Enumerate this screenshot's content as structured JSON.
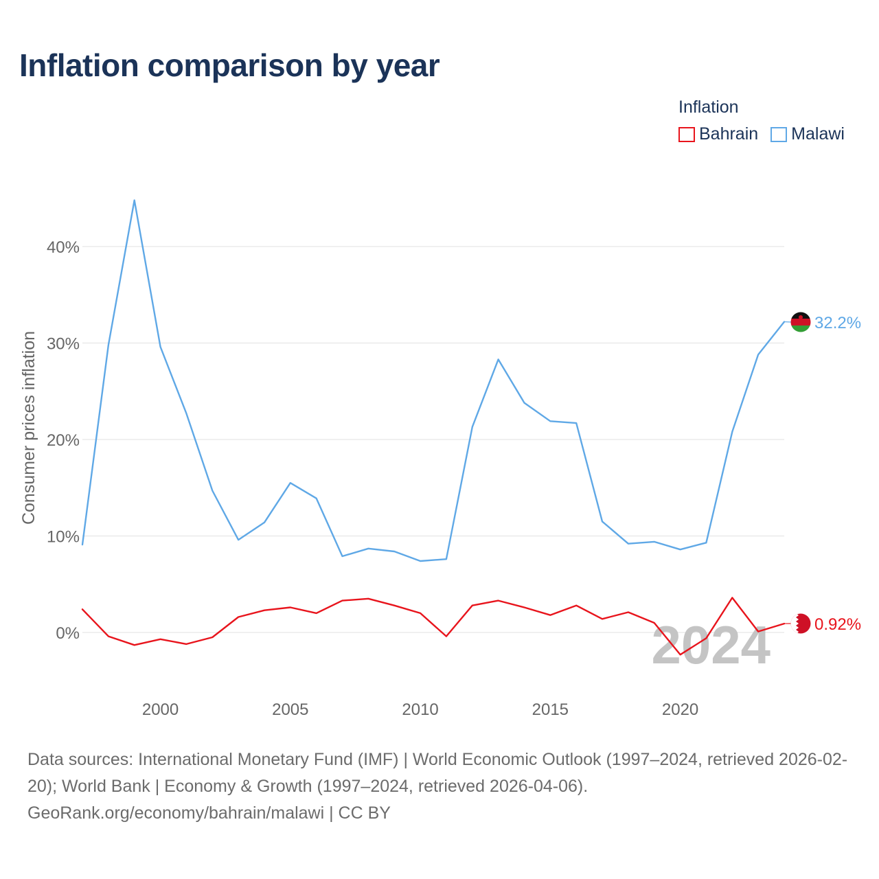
{
  "title": "Inflation comparison by year",
  "legend": {
    "title": "Inflation",
    "items": [
      {
        "label": "Bahrain",
        "color": "#e8141c"
      },
      {
        "label": "Malawi",
        "color": "#5fa8e6"
      }
    ]
  },
  "watermark_year": "2024",
  "chart_data": {
    "type": "line",
    "title": "Inflation comparison by year",
    "xlabel": "",
    "ylabel": "Consumer prices inflation",
    "xlim": [
      1997,
      2024
    ],
    "ylim": [
      -5,
      48
    ],
    "x_ticks": [
      2000,
      2005,
      2010,
      2015,
      2020
    ],
    "y_ticks": [
      0,
      10,
      20,
      30,
      40
    ],
    "y_tick_labels": [
      "0%",
      "10%",
      "20%",
      "30%",
      "40%"
    ],
    "x": [
      1997,
      1998,
      1999,
      2000,
      2001,
      2002,
      2003,
      2004,
      2005,
      2006,
      2007,
      2008,
      2009,
      2010,
      2011,
      2012,
      2013,
      2014,
      2015,
      2016,
      2017,
      2018,
      2019,
      2020,
      2021,
      2022,
      2023,
      2024
    ],
    "series": [
      {
        "name": "Malawi",
        "color": "#5fa8e6",
        "end_label": "32.2%",
        "values": [
          9.1,
          29.8,
          44.8,
          29.6,
          22.7,
          14.7,
          9.6,
          11.4,
          15.5,
          13.9,
          7.9,
          8.7,
          8.4,
          7.4,
          7.6,
          21.3,
          28.3,
          23.8,
          21.9,
          21.7,
          11.5,
          9.2,
          9.4,
          8.6,
          9.3,
          20.8,
          28.8,
          32.2
        ]
      },
      {
        "name": "Bahrain",
        "color": "#e8141c",
        "end_label": "0.92%",
        "values": [
          2.4,
          -0.4,
          -1.3,
          -0.7,
          -1.2,
          -0.5,
          1.6,
          2.3,
          2.6,
          2.0,
          3.3,
          3.5,
          2.8,
          2.0,
          -0.4,
          2.8,
          3.3,
          2.6,
          1.8,
          2.8,
          1.4,
          2.1,
          1.0,
          -2.3,
          -0.6,
          3.6,
          0.1,
          0.92
        ]
      }
    ]
  },
  "footer": {
    "sources": "Data sources: International Monetary Fund (IMF) | World Economic Outlook (1997–2024, retrieved 2026-02-20); World Bank | Economy & Growth (1997–2024, retrieved 2026-04-06).",
    "credit": "GeoRank.org/economy/bahrain/malawi | CC BY"
  }
}
